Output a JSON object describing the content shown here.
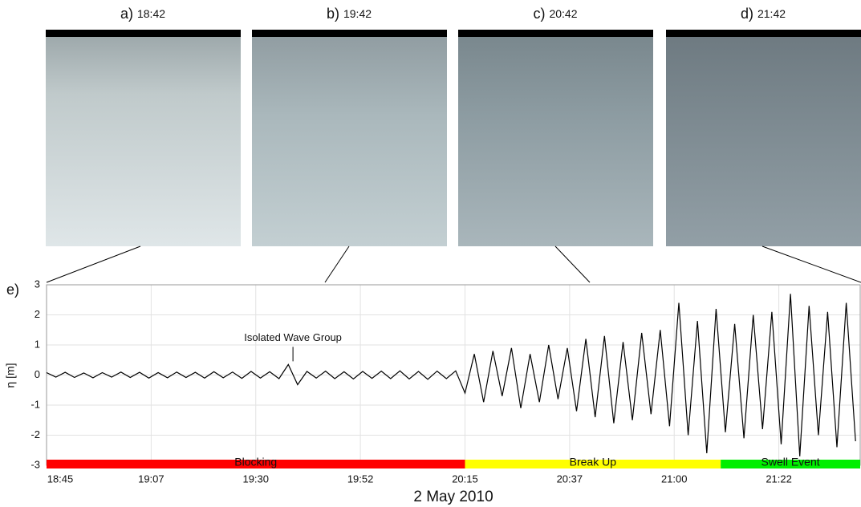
{
  "chart_data": {
    "type": "line",
    "panels": [
      {
        "label": "a)",
        "time": "18:42"
      },
      {
        "label": "b)",
        "time": "19:42"
      },
      {
        "label": "c)",
        "time": "20:42"
      },
      {
        "label": "d)",
        "time": "21:42"
      }
    ],
    "panel_label": "e)",
    "ylabel": "η [m]",
    "xlabel": "2 May 2010",
    "annotation": {
      "text": "Isolated Wave Group",
      "x": 1178,
      "y": 0.35
    },
    "x": [
      1125,
      1127,
      1129,
      1131,
      1133,
      1135,
      1137,
      1139,
      1141,
      1143,
      1145,
      1147,
      1149,
      1151,
      1153,
      1155,
      1157,
      1159,
      1161,
      1163,
      1165,
      1167,
      1169,
      1171,
      1173,
      1175,
      1177,
      1179,
      1181,
      1183,
      1185,
      1187,
      1189,
      1191,
      1193,
      1195,
      1197,
      1199,
      1201,
      1203,
      1205,
      1207,
      1209,
      1211,
      1213,
      1215,
      1217,
      1219,
      1221,
      1223,
      1225,
      1227,
      1229,
      1231,
      1233,
      1235,
      1237,
      1239,
      1241,
      1243,
      1245,
      1247,
      1249,
      1251,
      1253,
      1255,
      1257,
      1259,
      1261,
      1263,
      1265,
      1267,
      1269,
      1271,
      1273,
      1275,
      1277,
      1279,
      1281,
      1283,
      1285,
      1287,
      1289,
      1291,
      1293,
      1295,
      1297,
      1299
    ],
    "series": [
      {
        "color": "#000000",
        "values": [
          0.08,
          -0.07,
          0.09,
          -0.08,
          0.07,
          -0.09,
          0.08,
          -0.07,
          0.1,
          -0.08,
          0.09,
          -0.1,
          0.08,
          -0.09,
          0.1,
          -0.08,
          0.09,
          -0.1,
          0.11,
          -0.09,
          0.1,
          -0.11,
          0.12,
          -0.1,
          0.11,
          -0.12,
          0.35,
          -0.32,
          0.12,
          -0.1,
          0.13,
          -0.12,
          0.11,
          -0.13,
          0.12,
          -0.11,
          0.13,
          -0.12,
          0.14,
          -0.13,
          0.12,
          -0.14,
          0.13,
          -0.12,
          0.14,
          -0.6,
          0.7,
          -0.9,
          0.8,
          -0.7,
          0.9,
          -1.1,
          0.7,
          -0.9,
          1.0,
          -0.8,
          0.9,
          -1.2,
          1.2,
          -1.4,
          1.3,
          -1.6,
          1.1,
          -1.5,
          1.4,
          -1.3,
          1.5,
          -1.7,
          2.4,
          -2.0,
          1.8,
          -2.6,
          2.2,
          -1.9,
          1.7,
          -2.1,
          2.0,
          -1.8,
          2.1,
          -2.3,
          2.7,
          -2.7,
          2.3,
          -2.0,
          2.1,
          -2.4,
          2.4,
          -2.2
        ]
      }
    ],
    "phases": [
      {
        "label": "Blocking",
        "start": 1125,
        "end": 1215,
        "color": "#ff0000"
      },
      {
        "label": "Break Up",
        "start": 1215,
        "end": 1270,
        "color": "#ffff00"
      },
      {
        "label": "Swell Event",
        "start": 1270,
        "end": 1300,
        "color": "#00ee00"
      }
    ],
    "xlim": [
      1125,
      1300
    ],
    "xticks": [
      {
        "value": 1125,
        "label": "18:45"
      },
      {
        "value": 1147.5,
        "label": "19:07"
      },
      {
        "value": 1170,
        "label": "19:30"
      },
      {
        "value": 1192.5,
        "label": "19:52"
      },
      {
        "value": 1215,
        "label": "20:15"
      },
      {
        "value": 1237.5,
        "label": "20:37"
      },
      {
        "value": 1260,
        "label": "21:00"
      },
      {
        "value": 1282.5,
        "label": "21:22"
      }
    ],
    "ylim": [
      -3,
      3
    ],
    "yticks": [
      -3,
      -2,
      -1,
      0,
      1,
      2,
      3
    ],
    "grid": true
  }
}
